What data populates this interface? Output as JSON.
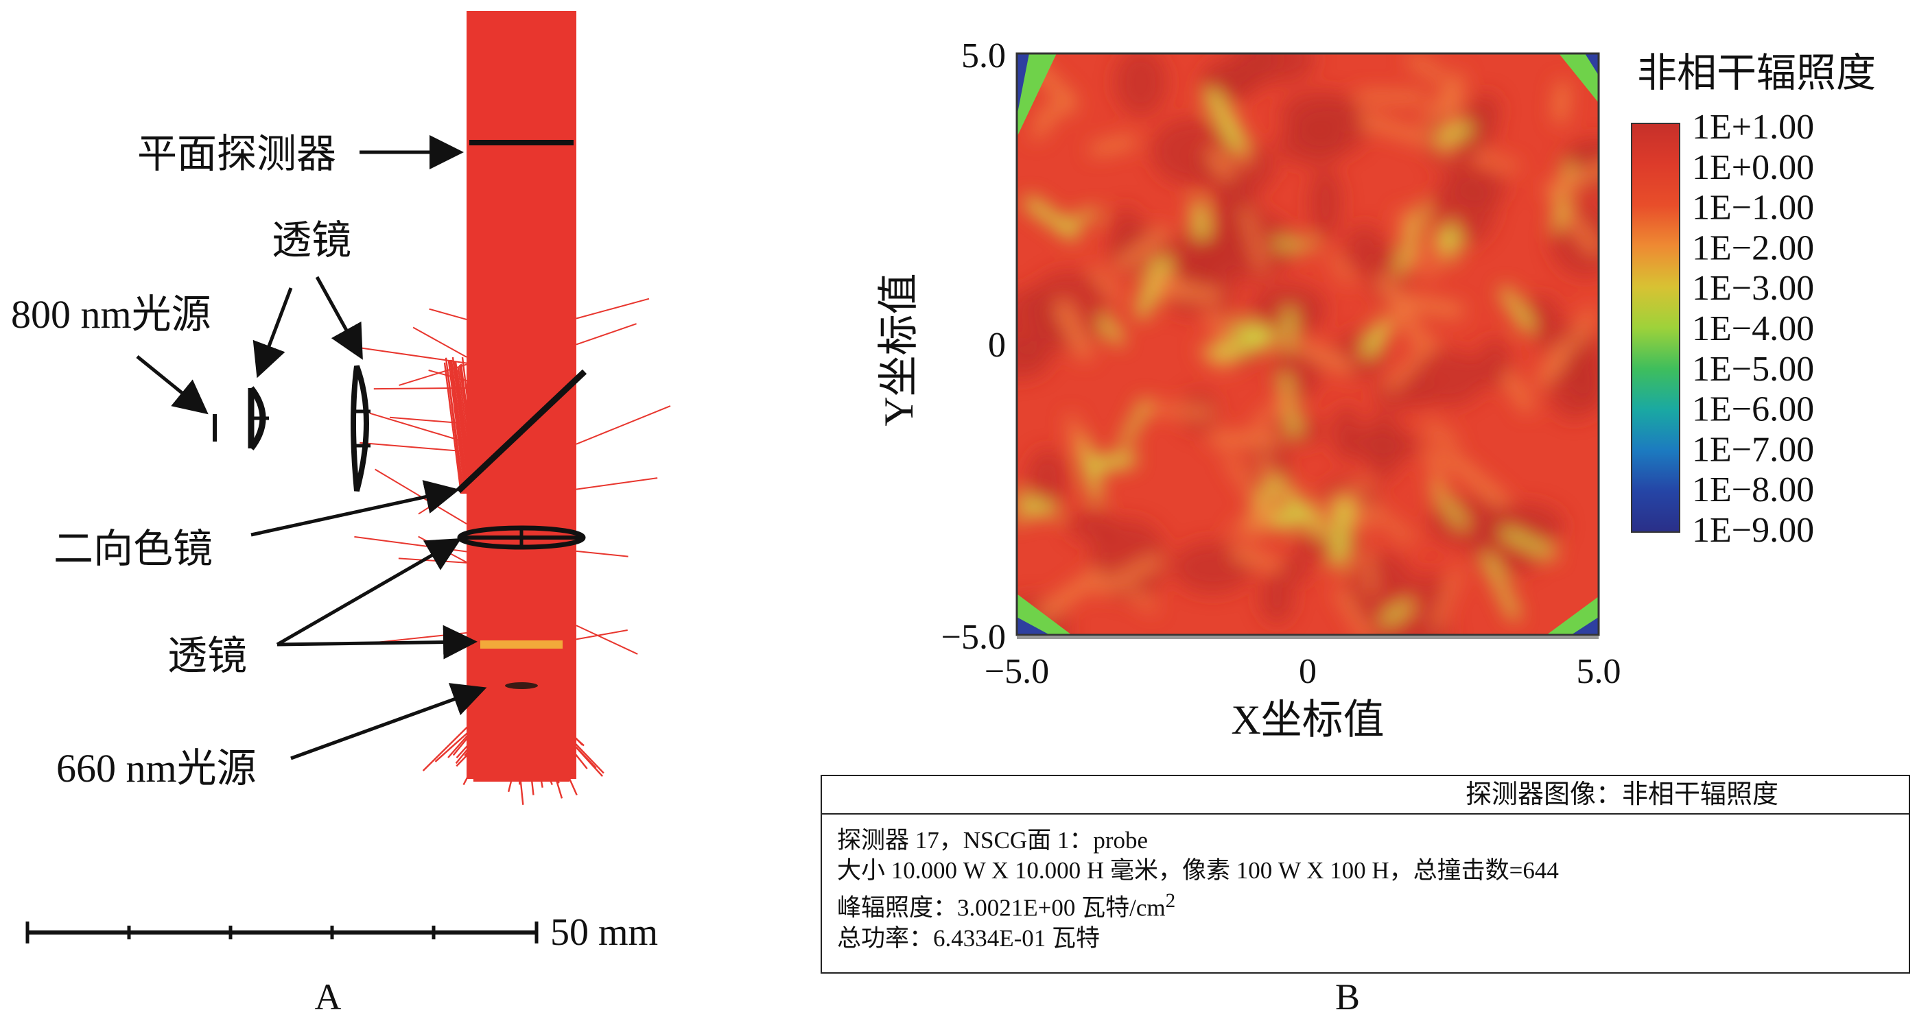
{
  "panel_a": {
    "label": "A",
    "labels": {
      "plane_detector": "平面探测器",
      "lens_top": "透镜",
      "source_800": "800 nm光源",
      "dichroic": "二向色镜",
      "lens_bottom": "透镜",
      "source_660": "660 nm光源"
    },
    "scale_bar_label": "50 mm",
    "colors": {
      "beam": "#e8362e",
      "optics": "#111111",
      "highlight": "#f2a93a"
    }
  },
  "panel_b": {
    "label": "B",
    "colorbar_title": "非相干辐照度",
    "colorbar_ticks": [
      "1E+1.00",
      "1E+0.00",
      "1E−1.00",
      "1E−2.00",
      "1E−3.00",
      "1E−4.00",
      "1E−5.00",
      "1E−6.00",
      "1E−7.00",
      "1E−8.00",
      "1E−9.00"
    ],
    "colorbar_stops": [
      "#c6302a",
      "#dd3b2a",
      "#e84e2a",
      "#ee8a33",
      "#d8c233",
      "#9ed23a",
      "#3fbe5c",
      "#1aa9a2",
      "#1c7bc0",
      "#2545a6",
      "#2a2f88"
    ],
    "heatmap_colors": {
      "base": "#e5432f",
      "bright": "#ee7a3c",
      "yellow": "#d2de44",
      "dark": "#c23128",
      "blue": "#2e3fa0",
      "green": "#6fd24a"
    },
    "chart_data": {
      "type": "heatmap",
      "xlabel": "X坐标值",
      "ylabel": "Y坐标值",
      "xlim": [
        -5.0,
        5.0
      ],
      "ylim": [
        -5.0,
        5.0
      ],
      "x_ticks": [
        "−5.0",
        "0",
        "5.0"
      ],
      "y_ticks": [
        "5.0",
        "0",
        "−5.0"
      ]
    },
    "info": {
      "header": "探测器图像：非相干辐照度",
      "line1": "探测器 17，NSCG面 1：probe",
      "line2": "大小 10.000 W X 10.000 H 毫米，像素 100 W X 100 H，总撞击数=644",
      "line3_prefix": "峰辐照度：3.0021E+00 瓦特/cm",
      "line3_sup": "2",
      "line4": "总功率：6.4334E-01 瓦特"
    }
  }
}
